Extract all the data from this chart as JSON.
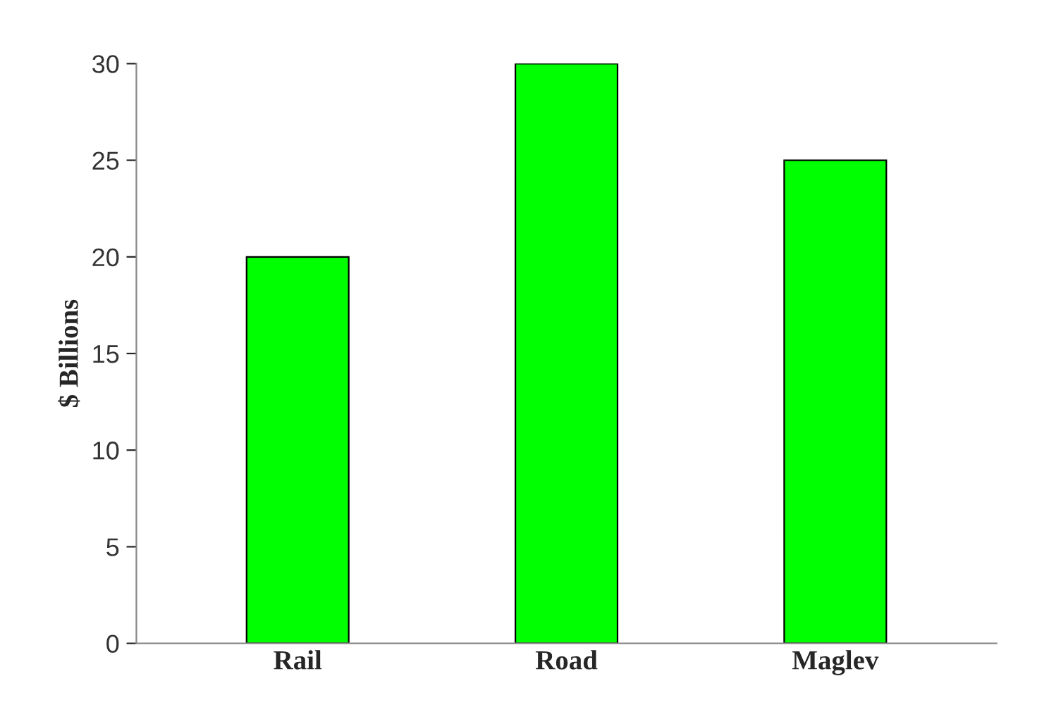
{
  "chart_data": {
    "type": "bar",
    "ylabel": "$ Billions",
    "categories": [
      "Rail",
      "Road",
      "Maglev"
    ],
    "values": [
      20,
      30,
      25
    ],
    "color": "#00ff00",
    "ylim": [
      0,
      30
    ],
    "yticks": [
      0,
      5,
      10,
      15,
      20,
      25,
      30
    ],
    "grid": false,
    "legend": false
  }
}
